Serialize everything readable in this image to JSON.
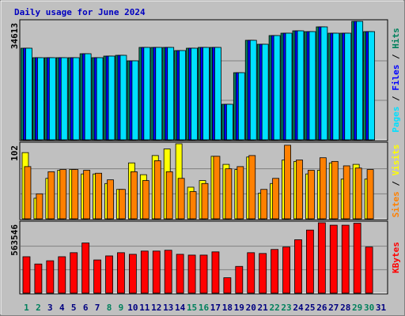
{
  "chart_data": {
    "type": "bar",
    "title": "Daily usage for June 2024",
    "title_color": "#0000c0",
    "categories": [
      "1",
      "2",
      "3",
      "4",
      "5",
      "6",
      "7",
      "8",
      "9",
      "10",
      "11",
      "12",
      "13",
      "14",
      "15",
      "16",
      "17",
      "18",
      "19",
      "20",
      "21",
      "22",
      "23",
      "24",
      "25",
      "26",
      "27",
      "28",
      "29",
      "30",
      "31"
    ],
    "category_colors": [
      "#00805c",
      "#00805c",
      "#000080",
      "#000080",
      "#000080",
      "#000080",
      "#000080",
      "#00805c",
      "#00805c",
      "#000080",
      "#000080",
      "#000080",
      "#000080",
      "#000080",
      "#00805c",
      "#00805c",
      "#000080",
      "#000080",
      "#000080",
      "#000080",
      "#000080",
      "#00805c",
      "#00805c",
      "#000080",
      "#000080",
      "#000080",
      "#000080",
      "#000080",
      "#00805c",
      "#00805c",
      "#000080"
    ],
    "legend_separator": "/",
    "panels": [
      {
        "ylim": [
          0,
          34613
        ],
        "yticks": [
          34613
        ],
        "series": [
          {
            "name": "Hits",
            "color": "#00805c",
            "values": [
              26767,
              23998,
              23998,
              23998,
              23998,
              25152,
              23998,
              24460,
              24690,
              23075,
              26998,
              26998,
              26998,
              26075,
              26767,
              26998,
              26998,
              10384,
              19614,
              29075,
              27921,
              30459,
              31151,
              31844,
              31613,
              32997,
              31151,
              31151,
              34613,
              31613,
              null
            ]
          },
          {
            "name": "Files",
            "color": "#0000ff",
            "values": [
              26767,
              23998,
              23998,
              23998,
              23998,
              25152,
              23998,
              24460,
              24690,
              23075,
              26998,
              26998,
              26998,
              26075,
              26767,
              26998,
              26998,
              10384,
              19614,
              29075,
              27921,
              30459,
              31151,
              31844,
              31613,
              32997,
              31151,
              31151,
              34613,
              31613,
              null
            ]
          },
          {
            "name": "Pages",
            "color": "#00e0ff",
            "values": [
              26767,
              23998,
              23998,
              23998,
              23998,
              25152,
              23998,
              24460,
              24690,
              23075,
              26998,
              26998,
              26998,
              26075,
              26767,
              26998,
              26998,
              10384,
              19614,
              29075,
              27921,
              30459,
              31151,
              31844,
              31613,
              32997,
              31151,
              31151,
              34613,
              31613,
              null
            ]
          }
        ]
      },
      {
        "ylim": [
          0,
          102
        ],
        "yticks": [
          102
        ],
        "series": [
          {
            "name": "Visits",
            "color": "#ffff00",
            "values": [
              90,
              28,
              55,
              66,
              67,
              61,
              61,
              48,
              40,
              76,
              60,
              86,
              95,
              102,
              43,
              52,
              85,
              74,
              67,
              84,
              35,
              48,
              80,
              78,
              61,
              66,
              76,
              54,
              74,
              54,
              null
            ]
          },
          {
            "name": "Sites",
            "color": "#ff8000",
            "values": [
              71,
              34,
              64,
              67,
              67,
              66,
              62,
              53,
              40,
              64,
              52,
              79,
              64,
              55,
              37,
              48,
              85,
              68,
              71,
              86,
              40,
              55,
              100,
              80,
              66,
              83,
              78,
              72,
              69,
              67,
              null
            ]
          }
        ]
      },
      {
        "ylim": [
          0,
          563546
        ],
        "yticks": [
          563546
        ],
        "series": [
          {
            "name": "KBytes",
            "color": "#ff0000",
            "values": [
              291500,
              233200,
              259100,
              291500,
              323900,
              401600,
              265600,
              298000,
              323900,
              310900,
              336800,
              336800,
              343300,
              310900,
              304500,
              304500,
              330400,
              123100,
              213800,
              323900,
              317400,
              349800,
              369200,
              427500,
              505300,
              563546,
              544200,
              544200,
              560000,
              369200,
              null
            ]
          }
        ]
      }
    ]
  }
}
